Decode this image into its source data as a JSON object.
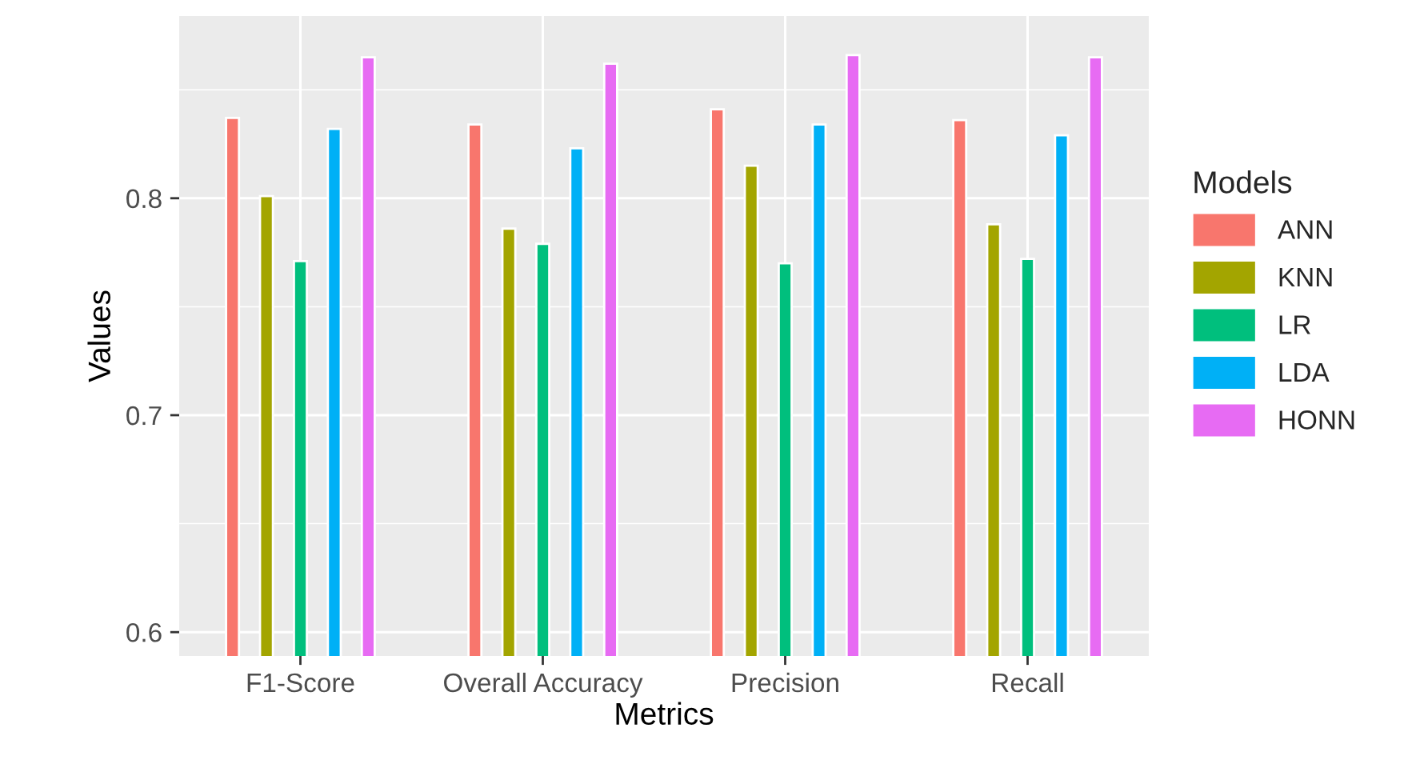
{
  "chart_data": {
    "type": "bar",
    "xlabel": "Metrics",
    "ylabel": "Values",
    "legend_title": "Models",
    "categories": [
      "F1-Score",
      "Overall Accuracy",
      "Precision",
      "Recall"
    ],
    "series": [
      {
        "name": "ANN",
        "color": "#f8766d",
        "values": [
          0.837,
          0.834,
          0.841,
          0.836
        ]
      },
      {
        "name": "KNN",
        "color": "#a3a500",
        "values": [
          0.801,
          0.786,
          0.815,
          0.788
        ]
      },
      {
        "name": "LR",
        "color": "#00bf7d",
        "values": [
          0.771,
          0.779,
          0.77,
          0.772
        ]
      },
      {
        "name": "LDA",
        "color": "#00b0f6",
        "values": [
          0.832,
          0.823,
          0.834,
          0.829
        ]
      },
      {
        "name": "HONN",
        "color": "#e76bf3",
        "values": [
          0.865,
          0.862,
          0.866,
          0.865
        ]
      }
    ],
    "ylim": [
      0.589,
      0.884
    ],
    "yticks": [
      0.6,
      0.7,
      0.8
    ],
    "grid": true,
    "legend": "right"
  }
}
